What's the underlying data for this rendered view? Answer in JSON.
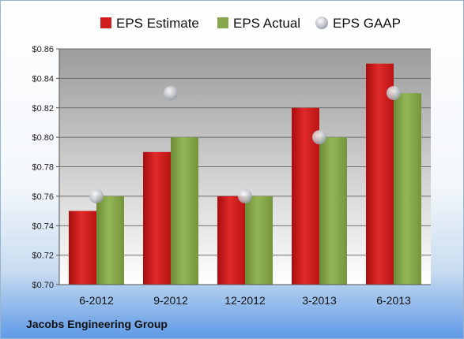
{
  "chart_data": {
    "type": "bar",
    "categories": [
      "6-2012",
      "9-2012",
      "12-2012",
      "3-2013",
      "6-2013"
    ],
    "series": [
      {
        "name": "EPS Estimate",
        "kind": "bar",
        "color": "#d11f1f",
        "values": [
          0.75,
          0.79,
          0.76,
          0.82,
          0.85
        ]
      },
      {
        "name": "EPS Actual",
        "kind": "bar",
        "color": "#86a84a",
        "values": [
          0.76,
          0.8,
          0.76,
          0.8,
          0.83
        ]
      },
      {
        "name": "EPS GAAP",
        "kind": "point",
        "color": "#b8bec6",
        "values": [
          0.76,
          0.83,
          0.76,
          0.8,
          0.83
        ]
      }
    ],
    "yticks": [
      "$0.70",
      "$0.72",
      "$0.74",
      "$0.76",
      "$0.78",
      "$0.80",
      "$0.82",
      "$0.84",
      "$0.86"
    ],
    "ylim": [
      0.7,
      0.86
    ],
    "grid": true,
    "legend_position": "top",
    "title": "",
    "xlabel": "",
    "ylabel": ""
  },
  "footer": {
    "company": "Jacobs Engineering Group"
  }
}
